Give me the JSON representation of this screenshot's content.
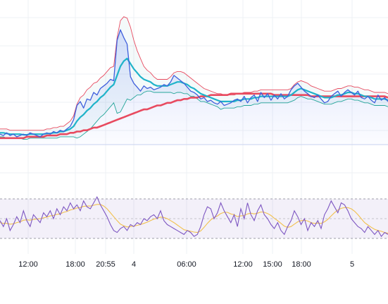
{
  "chart_data": [
    {
      "type": "line",
      "pane": "price",
      "legend": "none",
      "grid": true,
      "x_ticks": [
        "12:00",
        "18:00",
        "20:55",
        "4",
        "06:00",
        "12:00",
        "15:00",
        "18:00",
        "5"
      ],
      "series": [
        {
          "color": "#3f5fdc",
          "values": [
            0.08,
            0.07,
            0.09,
            0.07,
            0.08,
            0.06,
            0.07,
            0.08,
            0.07,
            0.09,
            0.08,
            0.07,
            0.06,
            0.08,
            0.09,
            0.08,
            0.1,
            0.09,
            0.11,
            0.1,
            0.12,
            0.14,
            0.19,
            0.3,
            0.33,
            0.28,
            0.35,
            0.34,
            0.4,
            0.38,
            0.43,
            0.45,
            0.47,
            0.5,
            0.49,
            0.8,
            0.88,
            0.82,
            0.77,
            0.52,
            0.47,
            0.44,
            0.41,
            0.45,
            0.43,
            0.44,
            0.42,
            0.43,
            0.44,
            0.46,
            0.45,
            0.48,
            0.53,
            0.51,
            0.49,
            0.47,
            0.44,
            0.41,
            0.4,
            0.38,
            0.35,
            0.36,
            0.33,
            0.34,
            0.32,
            0.31,
            0.33,
            0.3,
            0.31,
            0.32,
            0.34,
            0.35,
            0.33,
            0.37,
            0.32,
            0.36,
            0.38,
            0.33,
            0.4,
            0.36,
            0.39,
            0.34,
            0.38,
            0.35,
            0.39,
            0.35,
            0.37,
            0.42,
            0.45,
            0.47,
            0.44,
            0.41,
            0.39,
            0.37,
            0.36,
            0.38,
            0.35,
            0.32,
            0.33,
            0.37,
            0.39,
            0.41,
            0.37,
            0.4,
            0.42,
            0.4,
            0.38,
            0.41,
            0.36,
            0.35,
            0.37,
            0.34,
            0.32,
            0.38,
            0.34,
            0.36,
            0.33
          ]
        },
        {
          "color": "#1fb3c9",
          "values": [
            0.09,
            0.09,
            0.085,
            0.08,
            0.08,
            0.08,
            0.08,
            0.075,
            0.075,
            0.08,
            0.08,
            0.08,
            0.08,
            0.08,
            0.085,
            0.085,
            0.09,
            0.09,
            0.1,
            0.1,
            0.11,
            0.12,
            0.14,
            0.18,
            0.21,
            0.23,
            0.26,
            0.28,
            0.31,
            0.33,
            0.36,
            0.38,
            0.41,
            0.44,
            0.46,
            0.53,
            0.6,
            0.64,
            0.66,
            0.62,
            0.58,
            0.55,
            0.52,
            0.5,
            0.49,
            0.48,
            0.46,
            0.45,
            0.45,
            0.45,
            0.45,
            0.46,
            0.47,
            0.48,
            0.48,
            0.47,
            0.46,
            0.44,
            0.43,
            0.41,
            0.39,
            0.38,
            0.37,
            0.36,
            0.35,
            0.34,
            0.33,
            0.33,
            0.33,
            0.33,
            0.33,
            0.34,
            0.34,
            0.35,
            0.35,
            0.35,
            0.36,
            0.36,
            0.37,
            0.37,
            0.37,
            0.37,
            0.37,
            0.37,
            0.37,
            0.37,
            0.37,
            0.38,
            0.4,
            0.42,
            0.43,
            0.42,
            0.41,
            0.4,
            0.39,
            0.38,
            0.37,
            0.36,
            0.36,
            0.36,
            0.37,
            0.38,
            0.38,
            0.39,
            0.4,
            0.4,
            0.39,
            0.39,
            0.38,
            0.37,
            0.37,
            0.36,
            0.35,
            0.35,
            0.35,
            0.35,
            0.34
          ]
        },
        {
          "color": "#e84a5f",
          "values": [
            0.05,
            0.05,
            0.05,
            0.05,
            0.05,
            0.05,
            0.05,
            0.05,
            0.06,
            0.06,
            0.06,
            0.06,
            0.06,
            0.06,
            0.07,
            0.07,
            0.07,
            0.07,
            0.08,
            0.08,
            0.08,
            0.09,
            0.09,
            0.1,
            0.1,
            0.11,
            0.11,
            0.12,
            0.13,
            0.13,
            0.14,
            0.15,
            0.16,
            0.17,
            0.18,
            0.19,
            0.2,
            0.21,
            0.22,
            0.23,
            0.24,
            0.25,
            0.26,
            0.27,
            0.27,
            0.28,
            0.29,
            0.3,
            0.3,
            0.31,
            0.32,
            0.32,
            0.33,
            0.34,
            0.34,
            0.35,
            0.35,
            0.36,
            0.36,
            0.36,
            0.37,
            0.37,
            0.37,
            0.38,
            0.38,
            0.38,
            0.38,
            0.38,
            0.38,
            0.39,
            0.39,
            0.39,
            0.39,
            0.39,
            0.39,
            0.39,
            0.39,
            0.39,
            0.39,
            0.39,
            0.39,
            0.39,
            0.38,
            0.38,
            0.38,
            0.38,
            0.38,
            0.38,
            0.38,
            0.38,
            0.38,
            0.38,
            0.38,
            0.37,
            0.37,
            0.37,
            0.37,
            0.37,
            0.37,
            0.37,
            0.37,
            0.37,
            0.37,
            0.37,
            0.37,
            0.37,
            0.37,
            0.37,
            0.37,
            0.37,
            0.37,
            0.37,
            0.37,
            0.37,
            0.37,
            0.37,
            0.36
          ]
        }
      ],
      "bands": {
        "upper_color": "#e84a5f",
        "lower_color": "#26a69a",
        "upper": [
          0.12,
          0.12,
          0.12,
          0.11,
          0.11,
          0.11,
          0.11,
          0.11,
          0.11,
          0.11,
          0.11,
          0.11,
          0.11,
          0.11,
          0.12,
          0.12,
          0.13,
          0.13,
          0.14,
          0.14,
          0.16,
          0.18,
          0.22,
          0.31,
          0.36,
          0.38,
          0.42,
          0.44,
          0.47,
          0.48,
          0.51,
          0.53,
          0.56,
          0.59,
          0.6,
          0.82,
          0.95,
          0.98,
          0.97,
          0.9,
          0.8,
          0.72,
          0.66,
          0.6,
          0.57,
          0.55,
          0.52,
          0.5,
          0.5,
          0.5,
          0.5,
          0.52,
          0.55,
          0.56,
          0.56,
          0.55,
          0.53,
          0.51,
          0.49,
          0.47,
          0.45,
          0.43,
          0.42,
          0.41,
          0.4,
          0.39,
          0.39,
          0.38,
          0.38,
          0.38,
          0.38,
          0.39,
          0.39,
          0.4,
          0.4,
          0.4,
          0.41,
          0.41,
          0.42,
          0.42,
          0.42,
          0.42,
          0.42,
          0.42,
          0.42,
          0.42,
          0.42,
          0.43,
          0.46,
          0.48,
          0.49,
          0.48,
          0.47,
          0.45,
          0.44,
          0.43,
          0.42,
          0.41,
          0.41,
          0.41,
          0.42,
          0.43,
          0.43,
          0.44,
          0.45,
          0.45,
          0.44,
          0.44,
          0.43,
          0.42,
          0.42,
          0.41,
          0.4,
          0.4,
          0.4,
          0.4,
          0.39
        ],
        "lower": [
          0.06,
          0.06,
          0.05,
          0.05,
          0.05,
          0.05,
          0.05,
          0.04,
          0.04,
          0.05,
          0.05,
          0.05,
          0.05,
          0.05,
          0.05,
          0.05,
          0.05,
          0.05,
          0.06,
          0.06,
          0.06,
          0.06,
          0.06,
          0.05,
          0.06,
          0.08,
          0.1,
          0.12,
          0.15,
          0.18,
          0.21,
          0.23,
          0.26,
          0.29,
          0.32,
          0.24,
          0.25,
          0.3,
          0.35,
          0.34,
          0.36,
          0.38,
          0.38,
          0.4,
          0.41,
          0.41,
          0.4,
          0.4,
          0.4,
          0.4,
          0.4,
          0.4,
          0.39,
          0.4,
          0.4,
          0.39,
          0.39,
          0.37,
          0.37,
          0.35,
          0.33,
          0.33,
          0.32,
          0.31,
          0.3,
          0.29,
          0.27,
          0.28,
          0.28,
          0.28,
          0.28,
          0.29,
          0.29,
          0.3,
          0.3,
          0.3,
          0.31,
          0.31,
          0.32,
          0.32,
          0.32,
          0.32,
          0.32,
          0.32,
          0.32,
          0.32,
          0.32,
          0.33,
          0.34,
          0.36,
          0.37,
          0.36,
          0.35,
          0.35,
          0.34,
          0.33,
          0.32,
          0.31,
          0.31,
          0.31,
          0.32,
          0.33,
          0.33,
          0.34,
          0.35,
          0.35,
          0.34,
          0.34,
          0.33,
          0.32,
          0.32,
          0.31,
          0.3,
          0.3,
          0.3,
          0.3,
          0.29
        ]
      }
    },
    {
      "type": "line",
      "pane": "oscillator",
      "legend": "none",
      "grid": true,
      "band_color": "#7e57c2",
      "series": [
        {
          "color": "#7e57c2",
          "values": [
            0.45,
            0.3,
            0.5,
            0.2,
            0.35,
            0.55,
            0.4,
            0.7,
            0.45,
            0.3,
            0.6,
            0.5,
            0.4,
            0.65,
            0.55,
            0.7,
            0.5,
            0.75,
            0.6,
            0.8,
            0.7,
            0.9,
            0.75,
            0.85,
            0.7,
            0.95,
            0.8,
            0.75,
            0.9,
            1.05,
            0.85,
            0.7,
            0.55,
            0.35,
            0.2,
            0.15,
            0.25,
            0.3,
            0.2,
            0.35,
            0.3,
            0.4,
            0.35,
            0.5,
            0.45,
            0.55,
            0.6,
            0.5,
            0.7,
            0.45,
            0.35,
            0.3,
            0.25,
            0.2,
            0.15,
            0.1,
            0.2,
            0.15,
            0.05,
            0.1,
            0.3,
            0.6,
            0.8,
            0.75,
            0.5,
            0.65,
            0.9,
            0.7,
            0.55,
            0.4,
            0.6,
            0.3,
            0.75,
            0.5,
            0.9,
            0.6,
            0.45,
            0.7,
            0.85,
            0.6,
            0.5,
            0.35,
            0.25,
            0.4,
            0.2,
            0.1,
            0.3,
            0.45,
            0.7,
            0.55,
            0.35,
            0.5,
            0.2,
            0.4,
            0.3,
            0.45,
            0.25,
            0.6,
            0.75,
            0.95,
            0.8,
            0.65,
            0.9,
            0.85,
            0.7,
            0.5,
            0.4,
            0.3,
            0.25,
            0.15,
            0.3,
            0.2,
            0.1,
            0.2,
            0.05,
            0.15,
            0.1
          ]
        },
        {
          "color": "#f2c14e",
          "values": [
            0.4,
            0.38,
            0.38,
            0.36,
            0.37,
            0.4,
            0.42,
            0.46,
            0.47,
            0.46,
            0.48,
            0.49,
            0.5,
            0.52,
            0.54,
            0.57,
            0.58,
            0.61,
            0.62,
            0.66,
            0.68,
            0.72,
            0.74,
            0.77,
            0.78,
            0.81,
            0.82,
            0.82,
            0.84,
            0.86,
            0.86,
            0.82,
            0.75,
            0.65,
            0.55,
            0.45,
            0.36,
            0.32,
            0.29,
            0.3,
            0.31,
            0.33,
            0.35,
            0.38,
            0.41,
            0.45,
            0.49,
            0.51,
            0.54,
            0.53,
            0.5,
            0.45,
            0.4,
            0.34,
            0.28,
            0.22,
            0.2,
            0.18,
            0.16,
            0.15,
            0.19,
            0.28,
            0.38,
            0.47,
            0.53,
            0.57,
            0.63,
            0.66,
            0.66,
            0.62,
            0.6,
            0.55,
            0.57,
            0.58,
            0.62,
            0.64,
            0.62,
            0.64,
            0.67,
            0.66,
            0.63,
            0.58,
            0.51,
            0.45,
            0.38,
            0.31,
            0.28,
            0.3,
            0.36,
            0.42,
            0.45,
            0.46,
            0.44,
            0.4,
            0.38,
            0.39,
            0.38,
            0.42,
            0.48,
            0.57,
            0.65,
            0.72,
            0.76,
            0.78,
            0.78,
            0.75,
            0.69,
            0.6,
            0.5,
            0.4,
            0.34,
            0.28,
            0.23,
            0.2,
            0.18,
            0.15,
            0.13
          ]
        }
      ]
    }
  ]
}
